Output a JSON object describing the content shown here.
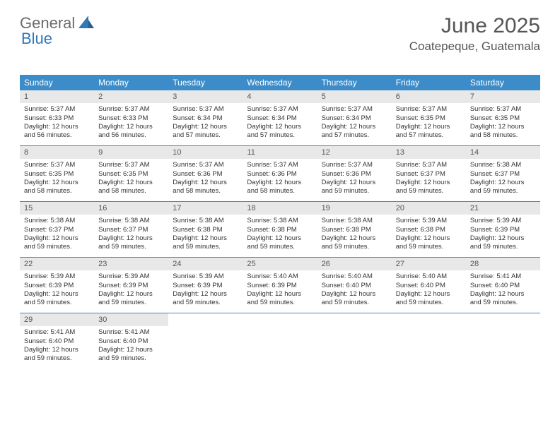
{
  "logo": {
    "part1": "General",
    "part2": "Blue"
  },
  "title": "June 2025",
  "location": "Coatepeque, Guatemala",
  "colors": {
    "header_bg": "#3b8cc9",
    "header_text": "#ffffff",
    "daynum_bg": "#e8e8e8",
    "divider": "#3b8cc9",
    "logo_gray": "#6b6b6b",
    "logo_blue": "#3078b8"
  },
  "day_headers": [
    "Sunday",
    "Monday",
    "Tuesday",
    "Wednesday",
    "Thursday",
    "Friday",
    "Saturday"
  ],
  "weeks": [
    [
      {
        "n": "1",
        "sr": "Sunrise: 5:37 AM",
        "ss": "Sunset: 6:33 PM",
        "dl1": "Daylight: 12 hours",
        "dl2": "and 56 minutes."
      },
      {
        "n": "2",
        "sr": "Sunrise: 5:37 AM",
        "ss": "Sunset: 6:33 PM",
        "dl1": "Daylight: 12 hours",
        "dl2": "and 56 minutes."
      },
      {
        "n": "3",
        "sr": "Sunrise: 5:37 AM",
        "ss": "Sunset: 6:34 PM",
        "dl1": "Daylight: 12 hours",
        "dl2": "and 57 minutes."
      },
      {
        "n": "4",
        "sr": "Sunrise: 5:37 AM",
        "ss": "Sunset: 6:34 PM",
        "dl1": "Daylight: 12 hours",
        "dl2": "and 57 minutes."
      },
      {
        "n": "5",
        "sr": "Sunrise: 5:37 AM",
        "ss": "Sunset: 6:34 PM",
        "dl1": "Daylight: 12 hours",
        "dl2": "and 57 minutes."
      },
      {
        "n": "6",
        "sr": "Sunrise: 5:37 AM",
        "ss": "Sunset: 6:35 PM",
        "dl1": "Daylight: 12 hours",
        "dl2": "and 57 minutes."
      },
      {
        "n": "7",
        "sr": "Sunrise: 5:37 AM",
        "ss": "Sunset: 6:35 PM",
        "dl1": "Daylight: 12 hours",
        "dl2": "and 58 minutes."
      }
    ],
    [
      {
        "n": "8",
        "sr": "Sunrise: 5:37 AM",
        "ss": "Sunset: 6:35 PM",
        "dl1": "Daylight: 12 hours",
        "dl2": "and 58 minutes."
      },
      {
        "n": "9",
        "sr": "Sunrise: 5:37 AM",
        "ss": "Sunset: 6:35 PM",
        "dl1": "Daylight: 12 hours",
        "dl2": "and 58 minutes."
      },
      {
        "n": "10",
        "sr": "Sunrise: 5:37 AM",
        "ss": "Sunset: 6:36 PM",
        "dl1": "Daylight: 12 hours",
        "dl2": "and 58 minutes."
      },
      {
        "n": "11",
        "sr": "Sunrise: 5:37 AM",
        "ss": "Sunset: 6:36 PM",
        "dl1": "Daylight: 12 hours",
        "dl2": "and 58 minutes."
      },
      {
        "n": "12",
        "sr": "Sunrise: 5:37 AM",
        "ss": "Sunset: 6:36 PM",
        "dl1": "Daylight: 12 hours",
        "dl2": "and 59 minutes."
      },
      {
        "n": "13",
        "sr": "Sunrise: 5:37 AM",
        "ss": "Sunset: 6:37 PM",
        "dl1": "Daylight: 12 hours",
        "dl2": "and 59 minutes."
      },
      {
        "n": "14",
        "sr": "Sunrise: 5:38 AM",
        "ss": "Sunset: 6:37 PM",
        "dl1": "Daylight: 12 hours",
        "dl2": "and 59 minutes."
      }
    ],
    [
      {
        "n": "15",
        "sr": "Sunrise: 5:38 AM",
        "ss": "Sunset: 6:37 PM",
        "dl1": "Daylight: 12 hours",
        "dl2": "and 59 minutes."
      },
      {
        "n": "16",
        "sr": "Sunrise: 5:38 AM",
        "ss": "Sunset: 6:37 PM",
        "dl1": "Daylight: 12 hours",
        "dl2": "and 59 minutes."
      },
      {
        "n": "17",
        "sr": "Sunrise: 5:38 AM",
        "ss": "Sunset: 6:38 PM",
        "dl1": "Daylight: 12 hours",
        "dl2": "and 59 minutes."
      },
      {
        "n": "18",
        "sr": "Sunrise: 5:38 AM",
        "ss": "Sunset: 6:38 PM",
        "dl1": "Daylight: 12 hours",
        "dl2": "and 59 minutes."
      },
      {
        "n": "19",
        "sr": "Sunrise: 5:38 AM",
        "ss": "Sunset: 6:38 PM",
        "dl1": "Daylight: 12 hours",
        "dl2": "and 59 minutes."
      },
      {
        "n": "20",
        "sr": "Sunrise: 5:39 AM",
        "ss": "Sunset: 6:38 PM",
        "dl1": "Daylight: 12 hours",
        "dl2": "and 59 minutes."
      },
      {
        "n": "21",
        "sr": "Sunrise: 5:39 AM",
        "ss": "Sunset: 6:39 PM",
        "dl1": "Daylight: 12 hours",
        "dl2": "and 59 minutes."
      }
    ],
    [
      {
        "n": "22",
        "sr": "Sunrise: 5:39 AM",
        "ss": "Sunset: 6:39 PM",
        "dl1": "Daylight: 12 hours",
        "dl2": "and 59 minutes."
      },
      {
        "n": "23",
        "sr": "Sunrise: 5:39 AM",
        "ss": "Sunset: 6:39 PM",
        "dl1": "Daylight: 12 hours",
        "dl2": "and 59 minutes."
      },
      {
        "n": "24",
        "sr": "Sunrise: 5:39 AM",
        "ss": "Sunset: 6:39 PM",
        "dl1": "Daylight: 12 hours",
        "dl2": "and 59 minutes."
      },
      {
        "n": "25",
        "sr": "Sunrise: 5:40 AM",
        "ss": "Sunset: 6:39 PM",
        "dl1": "Daylight: 12 hours",
        "dl2": "and 59 minutes."
      },
      {
        "n": "26",
        "sr": "Sunrise: 5:40 AM",
        "ss": "Sunset: 6:40 PM",
        "dl1": "Daylight: 12 hours",
        "dl2": "and 59 minutes."
      },
      {
        "n": "27",
        "sr": "Sunrise: 5:40 AM",
        "ss": "Sunset: 6:40 PM",
        "dl1": "Daylight: 12 hours",
        "dl2": "and 59 minutes."
      },
      {
        "n": "28",
        "sr": "Sunrise: 5:41 AM",
        "ss": "Sunset: 6:40 PM",
        "dl1": "Daylight: 12 hours",
        "dl2": "and 59 minutes."
      }
    ],
    [
      {
        "n": "29",
        "sr": "Sunrise: 5:41 AM",
        "ss": "Sunset: 6:40 PM",
        "dl1": "Daylight: 12 hours",
        "dl2": "and 59 minutes."
      },
      {
        "n": "30",
        "sr": "Sunrise: 5:41 AM",
        "ss": "Sunset: 6:40 PM",
        "dl1": "Daylight: 12 hours",
        "dl2": "and 59 minutes."
      },
      null,
      null,
      null,
      null,
      null
    ]
  ]
}
